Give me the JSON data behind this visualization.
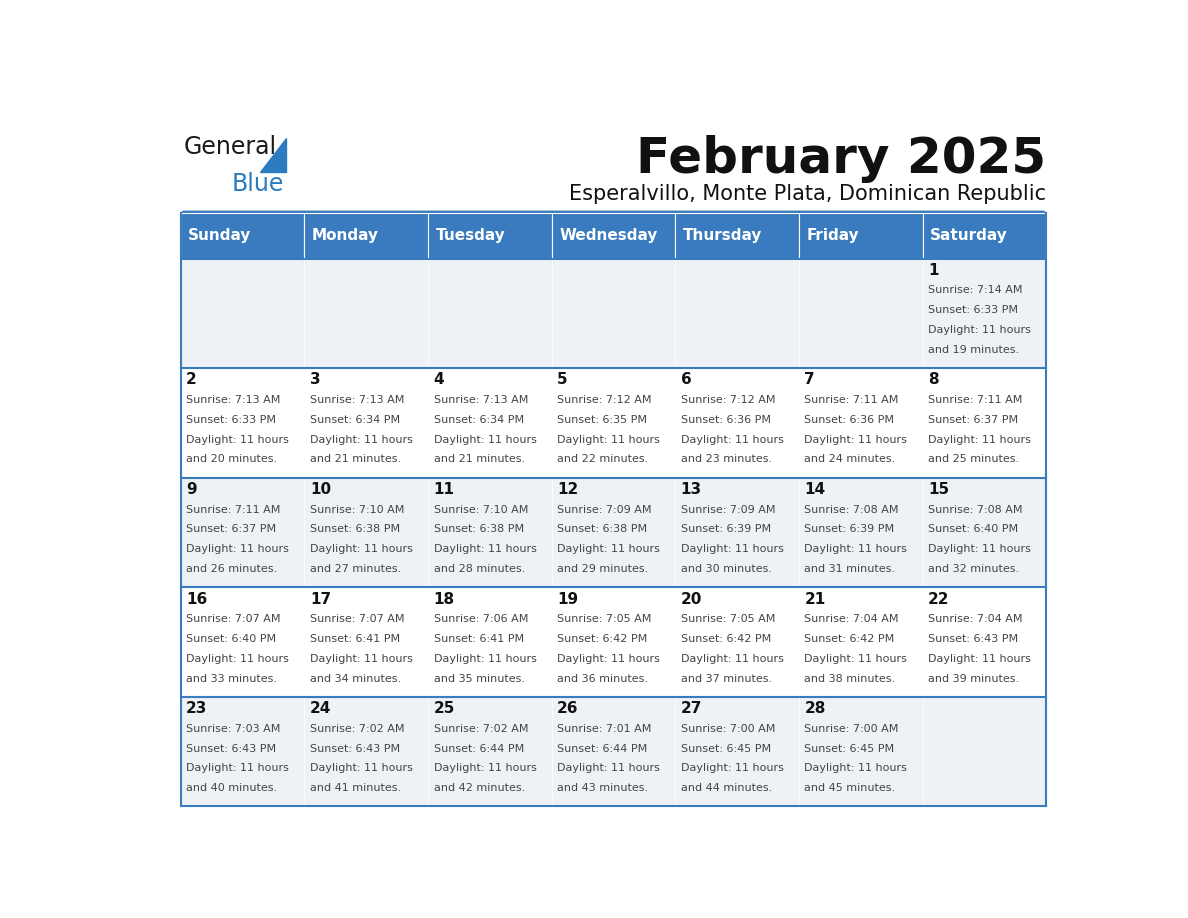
{
  "title": "February 2025",
  "subtitle": "Esperalvillo, Monte Plata, Dominican Republic",
  "header_bg": "#3a7bbf",
  "header_text_color": "#ffffff",
  "cell_bg_even": "#eef2f7",
  "cell_bg_odd": "#ffffff",
  "row_line_color": "#3a7bbf",
  "text_color": "#444444",
  "days_of_week": [
    "Sunday",
    "Monday",
    "Tuesday",
    "Wednesday",
    "Thursday",
    "Friday",
    "Saturday"
  ],
  "calendar_data": [
    [
      null,
      null,
      null,
      null,
      null,
      null,
      {
        "day": 1,
        "sunrise": "7:14 AM",
        "sunset": "6:33 PM",
        "daylight": "11 hours and 19 minutes."
      }
    ],
    [
      {
        "day": 2,
        "sunrise": "7:13 AM",
        "sunset": "6:33 PM",
        "daylight": "11 hours and 20 minutes."
      },
      {
        "day": 3,
        "sunrise": "7:13 AM",
        "sunset": "6:34 PM",
        "daylight": "11 hours and 21 minutes."
      },
      {
        "day": 4,
        "sunrise": "7:13 AM",
        "sunset": "6:34 PM",
        "daylight": "11 hours and 21 minutes."
      },
      {
        "day": 5,
        "sunrise": "7:12 AM",
        "sunset": "6:35 PM",
        "daylight": "11 hours and 22 minutes."
      },
      {
        "day": 6,
        "sunrise": "7:12 AM",
        "sunset": "6:36 PM",
        "daylight": "11 hours and 23 minutes."
      },
      {
        "day": 7,
        "sunrise": "7:11 AM",
        "sunset": "6:36 PM",
        "daylight": "11 hours and 24 minutes."
      },
      {
        "day": 8,
        "sunrise": "7:11 AM",
        "sunset": "6:37 PM",
        "daylight": "11 hours and 25 minutes."
      }
    ],
    [
      {
        "day": 9,
        "sunrise": "7:11 AM",
        "sunset": "6:37 PM",
        "daylight": "11 hours and 26 minutes."
      },
      {
        "day": 10,
        "sunrise": "7:10 AM",
        "sunset": "6:38 PM",
        "daylight": "11 hours and 27 minutes."
      },
      {
        "day": 11,
        "sunrise": "7:10 AM",
        "sunset": "6:38 PM",
        "daylight": "11 hours and 28 minutes."
      },
      {
        "day": 12,
        "sunrise": "7:09 AM",
        "sunset": "6:38 PM",
        "daylight": "11 hours and 29 minutes."
      },
      {
        "day": 13,
        "sunrise": "7:09 AM",
        "sunset": "6:39 PM",
        "daylight": "11 hours and 30 minutes."
      },
      {
        "day": 14,
        "sunrise": "7:08 AM",
        "sunset": "6:39 PM",
        "daylight": "11 hours and 31 minutes."
      },
      {
        "day": 15,
        "sunrise": "7:08 AM",
        "sunset": "6:40 PM",
        "daylight": "11 hours and 32 minutes."
      }
    ],
    [
      {
        "day": 16,
        "sunrise": "7:07 AM",
        "sunset": "6:40 PM",
        "daylight": "11 hours and 33 minutes."
      },
      {
        "day": 17,
        "sunrise": "7:07 AM",
        "sunset": "6:41 PM",
        "daylight": "11 hours and 34 minutes."
      },
      {
        "day": 18,
        "sunrise": "7:06 AM",
        "sunset": "6:41 PM",
        "daylight": "11 hours and 35 minutes."
      },
      {
        "day": 19,
        "sunrise": "7:05 AM",
        "sunset": "6:42 PM",
        "daylight": "11 hours and 36 minutes."
      },
      {
        "day": 20,
        "sunrise": "7:05 AM",
        "sunset": "6:42 PM",
        "daylight": "11 hours and 37 minutes."
      },
      {
        "day": 21,
        "sunrise": "7:04 AM",
        "sunset": "6:42 PM",
        "daylight": "11 hours and 38 minutes."
      },
      {
        "day": 22,
        "sunrise": "7:04 AM",
        "sunset": "6:43 PM",
        "daylight": "11 hours and 39 minutes."
      }
    ],
    [
      {
        "day": 23,
        "sunrise": "7:03 AM",
        "sunset": "6:43 PM",
        "daylight": "11 hours and 40 minutes."
      },
      {
        "day": 24,
        "sunrise": "7:02 AM",
        "sunset": "6:43 PM",
        "daylight": "11 hours and 41 minutes."
      },
      {
        "day": 25,
        "sunrise": "7:02 AM",
        "sunset": "6:44 PM",
        "daylight": "11 hours and 42 minutes."
      },
      {
        "day": 26,
        "sunrise": "7:01 AM",
        "sunset": "6:44 PM",
        "daylight": "11 hours and 43 minutes."
      },
      {
        "day": 27,
        "sunrise": "7:00 AM",
        "sunset": "6:45 PM",
        "daylight": "11 hours and 44 minutes."
      },
      {
        "day": 28,
        "sunrise": "7:00 AM",
        "sunset": "6:45 PM",
        "daylight": "11 hours and 45 minutes."
      },
      null
    ]
  ],
  "logo_text1": "General",
  "logo_text2": "Blue",
  "logo_color1": "#1a1a1a",
  "logo_color2": "#2b7bbf",
  "logo_triangle_color": "#2b7bbf"
}
